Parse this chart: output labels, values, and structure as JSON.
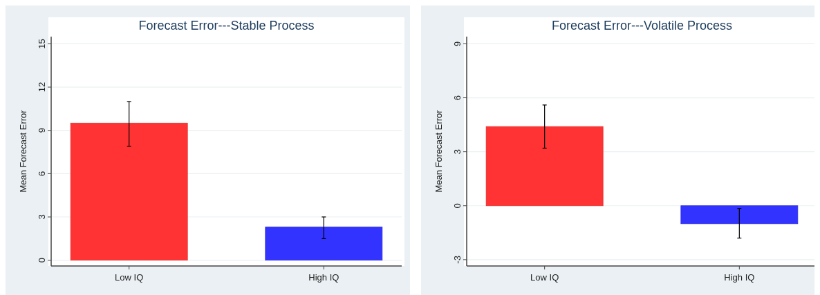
{
  "chart_data": [
    {
      "type": "bar",
      "title": "Forecast Error---Stable Process",
      "ylabel": "Mean Forecast Error",
      "categories": [
        "Low IQ",
        "High IQ"
      ],
      "values": [
        9.5,
        2.3
      ],
      "colors": [
        "#ff3333",
        "#3333ff"
      ],
      "errors": [
        [
          7.9,
          11.0
        ],
        [
          1.5,
          3.0
        ]
      ],
      "ylim": [
        -0.4,
        15.5
      ],
      "yticks": [
        0,
        3,
        6,
        9,
        12,
        15
      ],
      "grid": "y"
    },
    {
      "type": "bar",
      "title": "Forecast Error---Volatile Process",
      "ylabel": "Mean Forecast Error",
      "categories": [
        "Low IQ",
        "High IQ"
      ],
      "values": [
        4.4,
        -1.0
      ],
      "colors": [
        "#ff3333",
        "#3333ff"
      ],
      "errors": [
        [
          3.2,
          5.6
        ],
        [
          -1.8,
          -0.15
        ]
      ],
      "ylim": [
        -3.35,
        9.4
      ],
      "yticks": [
        -3,
        0,
        3,
        6,
        9
      ],
      "grid": "y"
    }
  ]
}
